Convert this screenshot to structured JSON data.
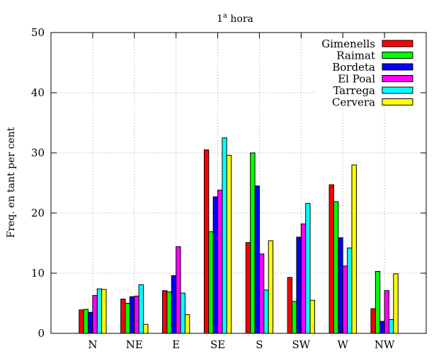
{
  "chart_data": {
    "type": "bar",
    "title": "1a hora",
    "title_base": "1",
    "title_sup": "a",
    "title_rest": " hora",
    "xlabel": "",
    "ylabel": "Freq. en tant per cent",
    "ylim": [
      0,
      50
    ],
    "yticks": [
      0,
      10,
      20,
      30,
      40,
      50
    ],
    "grid": true,
    "legend_position": "top-right",
    "categories": [
      "N",
      "NE",
      "E",
      "SE",
      "S",
      "SW",
      "W",
      "NW"
    ],
    "series": [
      {
        "name": "Gimenells",
        "color": "#ff0000",
        "values": [
          3.9,
          5.7,
          7.1,
          30.5,
          15.1,
          9.3,
          24.7,
          4.1
        ]
      },
      {
        "name": "Raimat",
        "color": "#00ff00",
        "values": [
          4.0,
          5.0,
          6.9,
          16.9,
          30.0,
          5.3,
          21.9,
          10.3
        ]
      },
      {
        "name": "Bordeta",
        "color": "#0000ff",
        "values": [
          3.5,
          6.1,
          9.6,
          22.7,
          24.5,
          16.0,
          15.9,
          2.0
        ]
      },
      {
        "name": "El Poal",
        "color": "#ff00ff",
        "values": [
          6.3,
          6.2,
          14.4,
          23.8,
          13.2,
          18.2,
          11.2,
          7.1
        ]
      },
      {
        "name": "Tarrega",
        "color": "#00ffff",
        "values": [
          7.4,
          8.1,
          6.7,
          32.5,
          7.2,
          21.6,
          14.2,
          2.3
        ]
      },
      {
        "name": "Cervera",
        "color": "#ffff00",
        "values": [
          7.3,
          1.5,
          3.1,
          29.6,
          15.4,
          5.5,
          28.0,
          9.9
        ]
      }
    ]
  }
}
